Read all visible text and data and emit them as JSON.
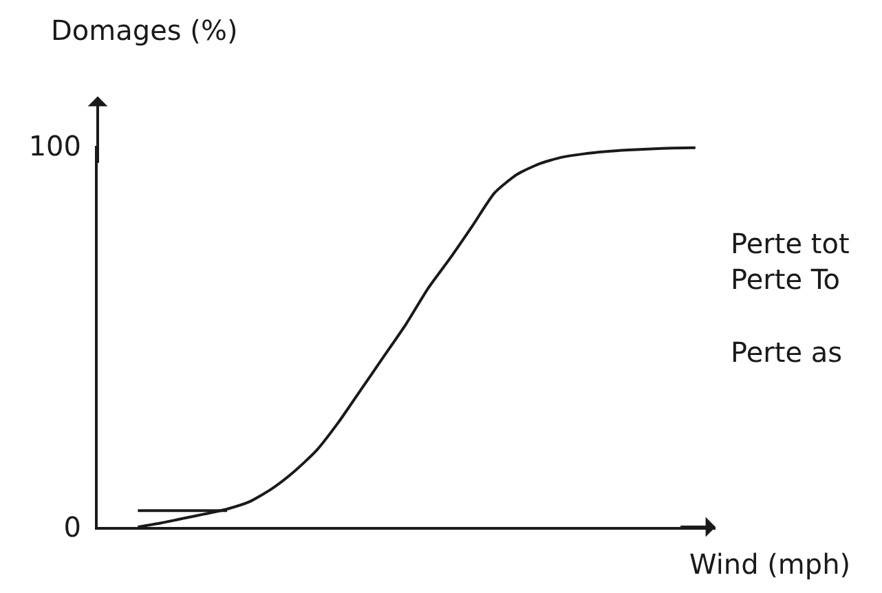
{
  "chart_data": {
    "type": "line",
    "xlabel": "Wind (mph)",
    "ylabel": "Domages (%)",
    "categories": [
      null,
      null,
      null,
      null,
      null,
      null,
      null,
      null,
      null,
      null,
      null,
      null,
      null,
      null,
      null,
      null,
      null,
      null,
      null,
      null,
      null,
      null,
      null,
      null,
      null,
      null
    ],
    "series": [
      {
        "color": "#1a1a1a",
        "values": [
          0,
          1.0,
          2.2,
          3.4,
          4.7,
          6.6,
          10,
          14.5,
          20,
          27.5,
          36,
          44.5,
          53,
          62.5,
          70.5,
          79,
          87.7,
          92.5,
          95.3,
          97,
          97.9,
          98.5,
          98.9,
          99.2,
          99.4,
          99.5
        ]
      },
      {
        "color": "#1a1a1a",
        "values": [
          4.3,
          4.3,
          4.3,
          4.3,
          4.3,
          null,
          null,
          null,
          null,
          null,
          null,
          null,
          null,
          null,
          null,
          null,
          null,
          null,
          null,
          null,
          null,
          null,
          null,
          null,
          null,
          null
        ]
      }
    ],
    "ylim": [
      0,
      100
    ],
    "yticks": [
      0,
      100
    ],
    "tick_labels": "y",
    "line_style": "solid",
    "annotations": [
      "Perte tot",
      "Perte To",
      "Perte as"
    ]
  }
}
